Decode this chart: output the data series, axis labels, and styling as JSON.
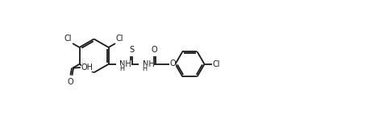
{
  "line_color": "#1a1a1a",
  "bg_color": "#ffffff",
  "lw": 1.3,
  "font_size": 7.0,
  "fig_w": 4.75,
  "fig_h": 1.58,
  "dpi": 100,
  "xlim": [
    -0.3,
    9.8
  ],
  "ylim": [
    -0.5,
    3.0
  ]
}
